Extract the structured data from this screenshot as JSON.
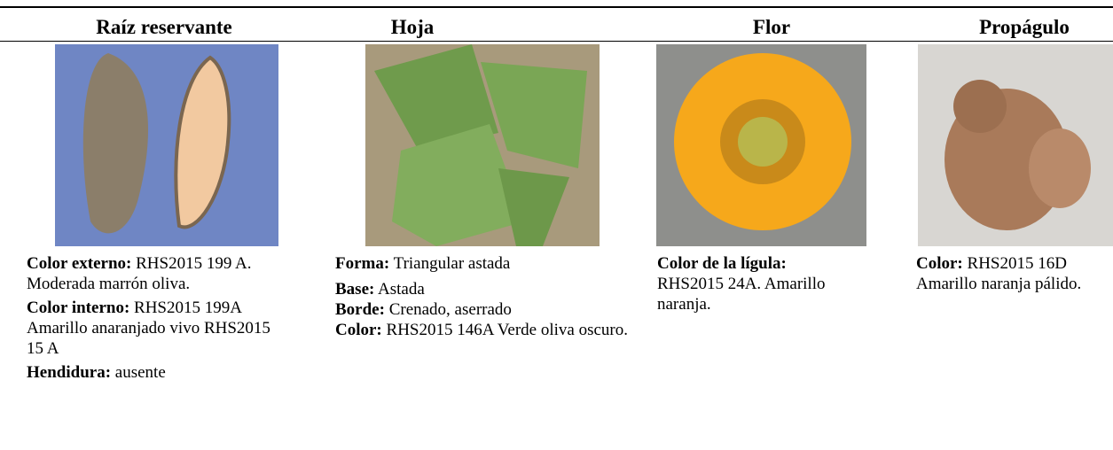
{
  "columns": [
    {
      "header": "Raíz reservante",
      "items": [
        {
          "label": "Color externo:",
          "text": "RHS2015 199 A. Moderada marrón oliva."
        },
        {
          "label": "Color interno:",
          "text": "RHS2015 199A Amarillo anaranjado vivo RHS2015 15 A"
        },
        {
          "label": "Hendidura:",
          "text": "ausente"
        }
      ]
    },
    {
      "header": "Hoja",
      "items": [
        {
          "label": "Forma:",
          "text": "Triangular astada"
        },
        {
          "label": "Base:",
          "text": "Astada"
        },
        {
          "label": "Borde:",
          "text": "Crenado, aserrado"
        },
        {
          "label": "Color:",
          "text": "RHS2015 146A Verde oliva oscuro."
        }
      ]
    },
    {
      "header": "Flor",
      "items": [
        {
          "label": "Color de la lígula:",
          "text": "RHS2015 24A. Amarillo naranja."
        }
      ]
    },
    {
      "header": "Propágulo",
      "items": [
        {
          "label": "Color:",
          "text": "RHS2015 16D Amarillo naranja pálido."
        }
      ]
    }
  ]
}
